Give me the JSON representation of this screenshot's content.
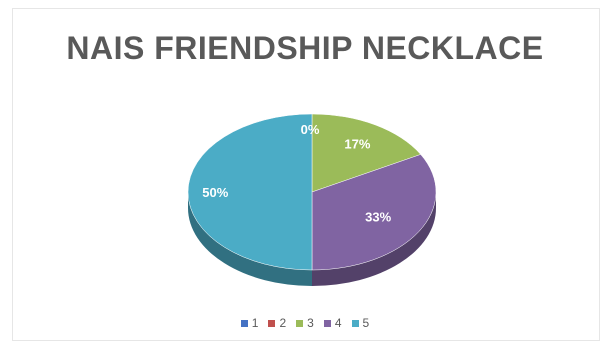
{
  "chart_data": {
    "type": "pie",
    "title": "NAIS FRIENDSHIP NECKLACE",
    "categories": [
      "1",
      "2",
      "3",
      "4",
      "5"
    ],
    "values": [
      0,
      0,
      17,
      33,
      50
    ],
    "labels": [
      "",
      "",
      "17%",
      "33%",
      "50%"
    ],
    "zero_label": "0%",
    "colors": [
      "#4472C4",
      "#C0504D",
      "#9BBB59",
      "#8064A2",
      "#4BACC6"
    ],
    "legend_position": "bottom",
    "three_d": true
  }
}
